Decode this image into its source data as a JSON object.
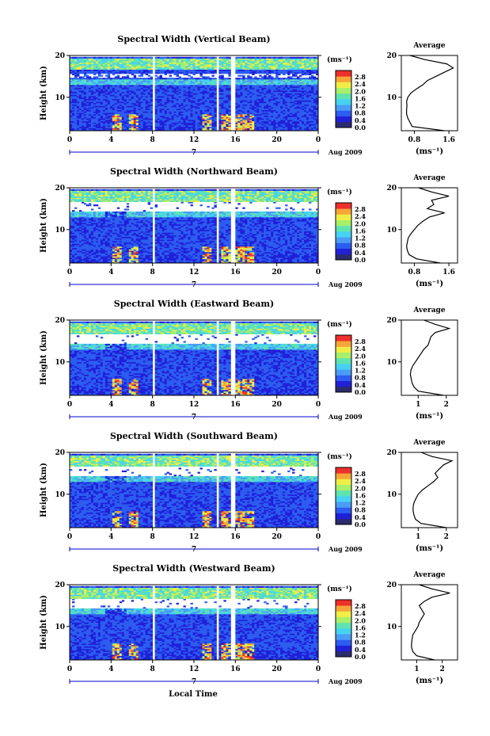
{
  "common": {
    "y_label": "Height (km)",
    "x_label": "Local Time",
    "x_ticks": [
      "0",
      "4",
      "8",
      "12",
      "16",
      "20",
      "0"
    ],
    "y_ticks": [
      "20",
      "10"
    ],
    "date_mark": "7",
    "date_label": "Aug 2009",
    "unit_label": "(ms⁻¹)",
    "colorbar_ticks": [
      "2.8",
      "2.4",
      "2.0",
      "1.6",
      "1.2",
      "0.8",
      "0.4",
      "0.0"
    ],
    "avg_title": "Average",
    "avg_xlabel": "(ms⁻¹)",
    "colors": {
      "background": "#ffffff",
      "scale": [
        "#2b2b6e",
        "#2020d8",
        "#2c5cf0",
        "#4a9cf5",
        "#46d2f2",
        "#5fe3b0",
        "#a8ef6a",
        "#f0ee46",
        "#f6a638",
        "#ef2f2a"
      ]
    }
  },
  "chart_data": [
    {
      "type": "heatmap",
      "title": "Spectral Width (Vertical Beam)",
      "x_range_hours": [
        0,
        24
      ],
      "y_range_km": [
        2,
        20
      ],
      "gaps_hours": [
        [
          7.9,
          8.2
        ],
        [
          14.1,
          14.4
        ],
        [
          15.6,
          15.9
        ]
      ],
      "average_profile": {
        "xlabel_ticks": [
          "0.8",
          "1.6"
        ],
        "x_range": [
          0.5,
          1.8
        ],
        "heights_km": [
          2,
          3,
          4,
          5,
          6,
          7,
          8,
          9,
          10,
          11,
          12,
          13,
          14,
          15,
          16,
          17,
          18,
          19,
          20
        ],
        "values": [
          1.5,
          0.75,
          0.7,
          0.65,
          0.62,
          0.62,
          0.63,
          0.62,
          0.65,
          0.72,
          0.85,
          1.0,
          1.1,
          1.3,
          1.5,
          1.7,
          1.55,
          1.05,
          0.7
        ]
      }
    },
    {
      "type": "heatmap",
      "title": "Spectral Width (Northward Beam)",
      "x_range_hours": [
        0,
        24
      ],
      "y_range_km": [
        2,
        20
      ],
      "gaps_hours": [
        [
          7.9,
          8.2
        ],
        [
          14.1,
          14.4
        ],
        [
          15.6,
          15.9
        ]
      ],
      "average_profile": {
        "xlabel_ticks": [
          "0.8",
          "1.6"
        ],
        "x_range": [
          0.5,
          1.8
        ],
        "heights_km": [
          2,
          3,
          4,
          5,
          6,
          7,
          8,
          9,
          10,
          11,
          12,
          13,
          14,
          15,
          16,
          17,
          18,
          19,
          20
        ],
        "values": [
          1.4,
          0.85,
          0.68,
          0.64,
          0.62,
          0.64,
          0.66,
          0.72,
          0.8,
          0.88,
          1.0,
          1.15,
          1.5,
          1.1,
          1.25,
          1.2,
          1.6,
          1.2,
          0.9
        ]
      }
    },
    {
      "type": "heatmap",
      "title": "Spectral Width (Eastward Beam)",
      "x_range_hours": [
        0,
        24
      ],
      "y_range_km": [
        2,
        20
      ],
      "gaps_hours": [
        [
          7.9,
          8.2
        ],
        [
          14.1,
          14.4
        ],
        [
          15.6,
          15.9
        ]
      ],
      "average_profile": {
        "xlabel_ticks": [
          "1",
          "2"
        ],
        "x_range": [
          0.4,
          2.4
        ],
        "heights_km": [
          2,
          3,
          4,
          5,
          6,
          7,
          8,
          9,
          10,
          11,
          12,
          13,
          14,
          15,
          16,
          17,
          18,
          19,
          20
        ],
        "values": [
          1.9,
          1.0,
          0.85,
          0.78,
          0.75,
          0.72,
          0.74,
          0.8,
          0.9,
          1.0,
          1.1,
          1.2,
          1.35,
          1.4,
          1.45,
          1.6,
          2.1,
          1.6,
          1.2
        ]
      }
    },
    {
      "type": "heatmap",
      "title": "Spectral Width (Southward Beam)",
      "x_range_hours": [
        0,
        24
      ],
      "y_range_km": [
        2,
        20
      ],
      "gaps_hours": [
        [
          7.9,
          8.2
        ],
        [
          14.1,
          14.4
        ],
        [
          15.6,
          15.9
        ]
      ],
      "average_profile": {
        "xlabel_ticks": [
          "1",
          "2"
        ],
        "x_range": [
          0.4,
          2.4
        ],
        "heights_km": [
          2,
          3,
          4,
          5,
          6,
          7,
          8,
          9,
          10,
          11,
          12,
          13,
          14,
          15,
          16,
          17,
          18,
          19,
          20
        ],
        "values": [
          2.0,
          1.1,
          0.9,
          0.85,
          0.82,
          0.82,
          0.85,
          0.92,
          1.0,
          1.15,
          1.35,
          1.55,
          1.7,
          1.6,
          1.75,
          1.9,
          2.2,
          1.5,
          1.1
        ]
      }
    },
    {
      "type": "heatmap",
      "title": "Spectral Width (Westward Beam)",
      "x_range_hours": [
        0,
        24
      ],
      "y_range_km": [
        2,
        20
      ],
      "gaps_hours": [
        [
          7.9,
          8.2
        ],
        [
          14.1,
          14.4
        ],
        [
          15.6,
          15.9
        ]
      ],
      "average_profile": {
        "xlabel_ticks": [
          "1",
          "2"
        ],
        "x_range": [
          0.4,
          2.6
        ],
        "heights_km": [
          2,
          3,
          4,
          5,
          6,
          7,
          8,
          9,
          10,
          11,
          12,
          13,
          14,
          15,
          16,
          17,
          18,
          19,
          20
        ],
        "values": [
          1.7,
          1.0,
          0.85,
          0.8,
          0.8,
          0.82,
          0.85,
          0.95,
          1.05,
          1.1,
          1.2,
          1.3,
          1.2,
          1.1,
          1.3,
          1.6,
          2.3,
          1.6,
          1.1
        ]
      }
    }
  ]
}
